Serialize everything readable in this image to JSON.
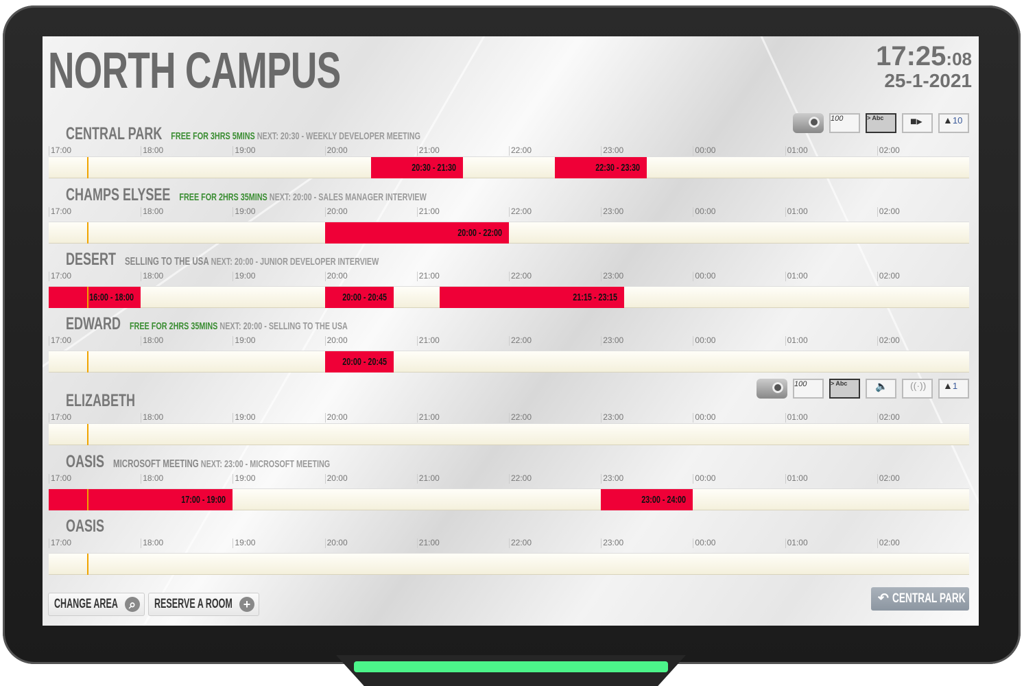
{
  "header": {
    "title": "NORTH CAMPUS",
    "time": "17:25",
    "seconds": ":08",
    "date": "25-1-2021"
  },
  "timeline": {
    "start_hour": 17,
    "hours": [
      "17:00",
      "18:00",
      "19:00",
      "20:00",
      "21:00",
      "22:00",
      "23:00",
      "00:00",
      "01:00",
      "02:00"
    ],
    "current_time": "17:25"
  },
  "rooms": [
    {
      "name": "CENTRAL PARK",
      "status_free": "FREE FOR 3HRS 5MINS",
      "status": "NEXT: 20:30 - WEEKLY DEVELOPER MEETING",
      "icons": [
        "projector-icon",
        "whiteboard-icon",
        "display-icon",
        "video-camera-icon",
        "capacity-icon"
      ],
      "capacity": "10",
      "bookings": [
        {
          "label": "20:30 - 21:30",
          "start": 20.5,
          "end": 21.5
        },
        {
          "label": "22:30 - 23:30",
          "start": 22.5,
          "end": 23.5
        }
      ]
    },
    {
      "name": "CHAMPS ELYSEE",
      "status_free": "FREE FOR 2HRS 35MINS",
      "status": "NEXT: 20:00 - SALES MANAGER INTERVIEW",
      "bookings": [
        {
          "label": "20:00 - 22:00",
          "start": 20,
          "end": 22
        }
      ]
    },
    {
      "name": "DESERT",
      "status_free": "",
      "status_current": "SELLING TO THE USA",
      "status": "NEXT: 20:00 - JUNIOR DEVELOPER INTERVIEW",
      "bookings": [
        {
          "label": "16:00 - 18:00",
          "start": 16,
          "end": 18
        },
        {
          "label": "20:00 - 20:45",
          "start": 20,
          "end": 20.75
        },
        {
          "label": "21:15 - 23:15",
          "start": 21.25,
          "end": 23.25
        }
      ]
    },
    {
      "name": "EDWARD",
      "status_free": "FREE FOR 2HRS 35MINS",
      "status": "NEXT: 20:00 - SELLING TO THE USA",
      "bookings": [
        {
          "label": "20:00 - 20:45",
          "start": 20,
          "end": 20.75
        }
      ]
    },
    {
      "name": "ELIZABETH",
      "status_free": "",
      "status": "",
      "icons": [
        "projector-icon",
        "whiteboard-icon",
        "display-icon",
        "speaker-icon",
        "wifi-icon",
        "capacity-icon"
      ],
      "capacity": "1",
      "bookings": []
    },
    {
      "name": "OASIS",
      "status_free": "",
      "status_current": "MICROSOFT MEETING",
      "status": "NEXT: 23:00 - MICROSOFT MEETING",
      "bookings": [
        {
          "label": "17:00 - 19:00",
          "start": 17,
          "end": 19
        },
        {
          "label": "23:00 - 24:00",
          "start": 23,
          "end": 24
        }
      ]
    },
    {
      "name": "OASIS",
      "status_free": "",
      "status": "",
      "bookings": []
    }
  ],
  "icon_text": {
    "whiteboard": "100",
    "display": "> Abc"
  },
  "footer": {
    "change_area": "CHANGE AREA",
    "reserve_room": "RESERVE A ROOM",
    "back": "CENTRAL PARK"
  },
  "colors": {
    "booked": "#ef0037",
    "free_text": "#3a8d32",
    "now_line": "#f0a400",
    "led": "#4cf58a"
  }
}
